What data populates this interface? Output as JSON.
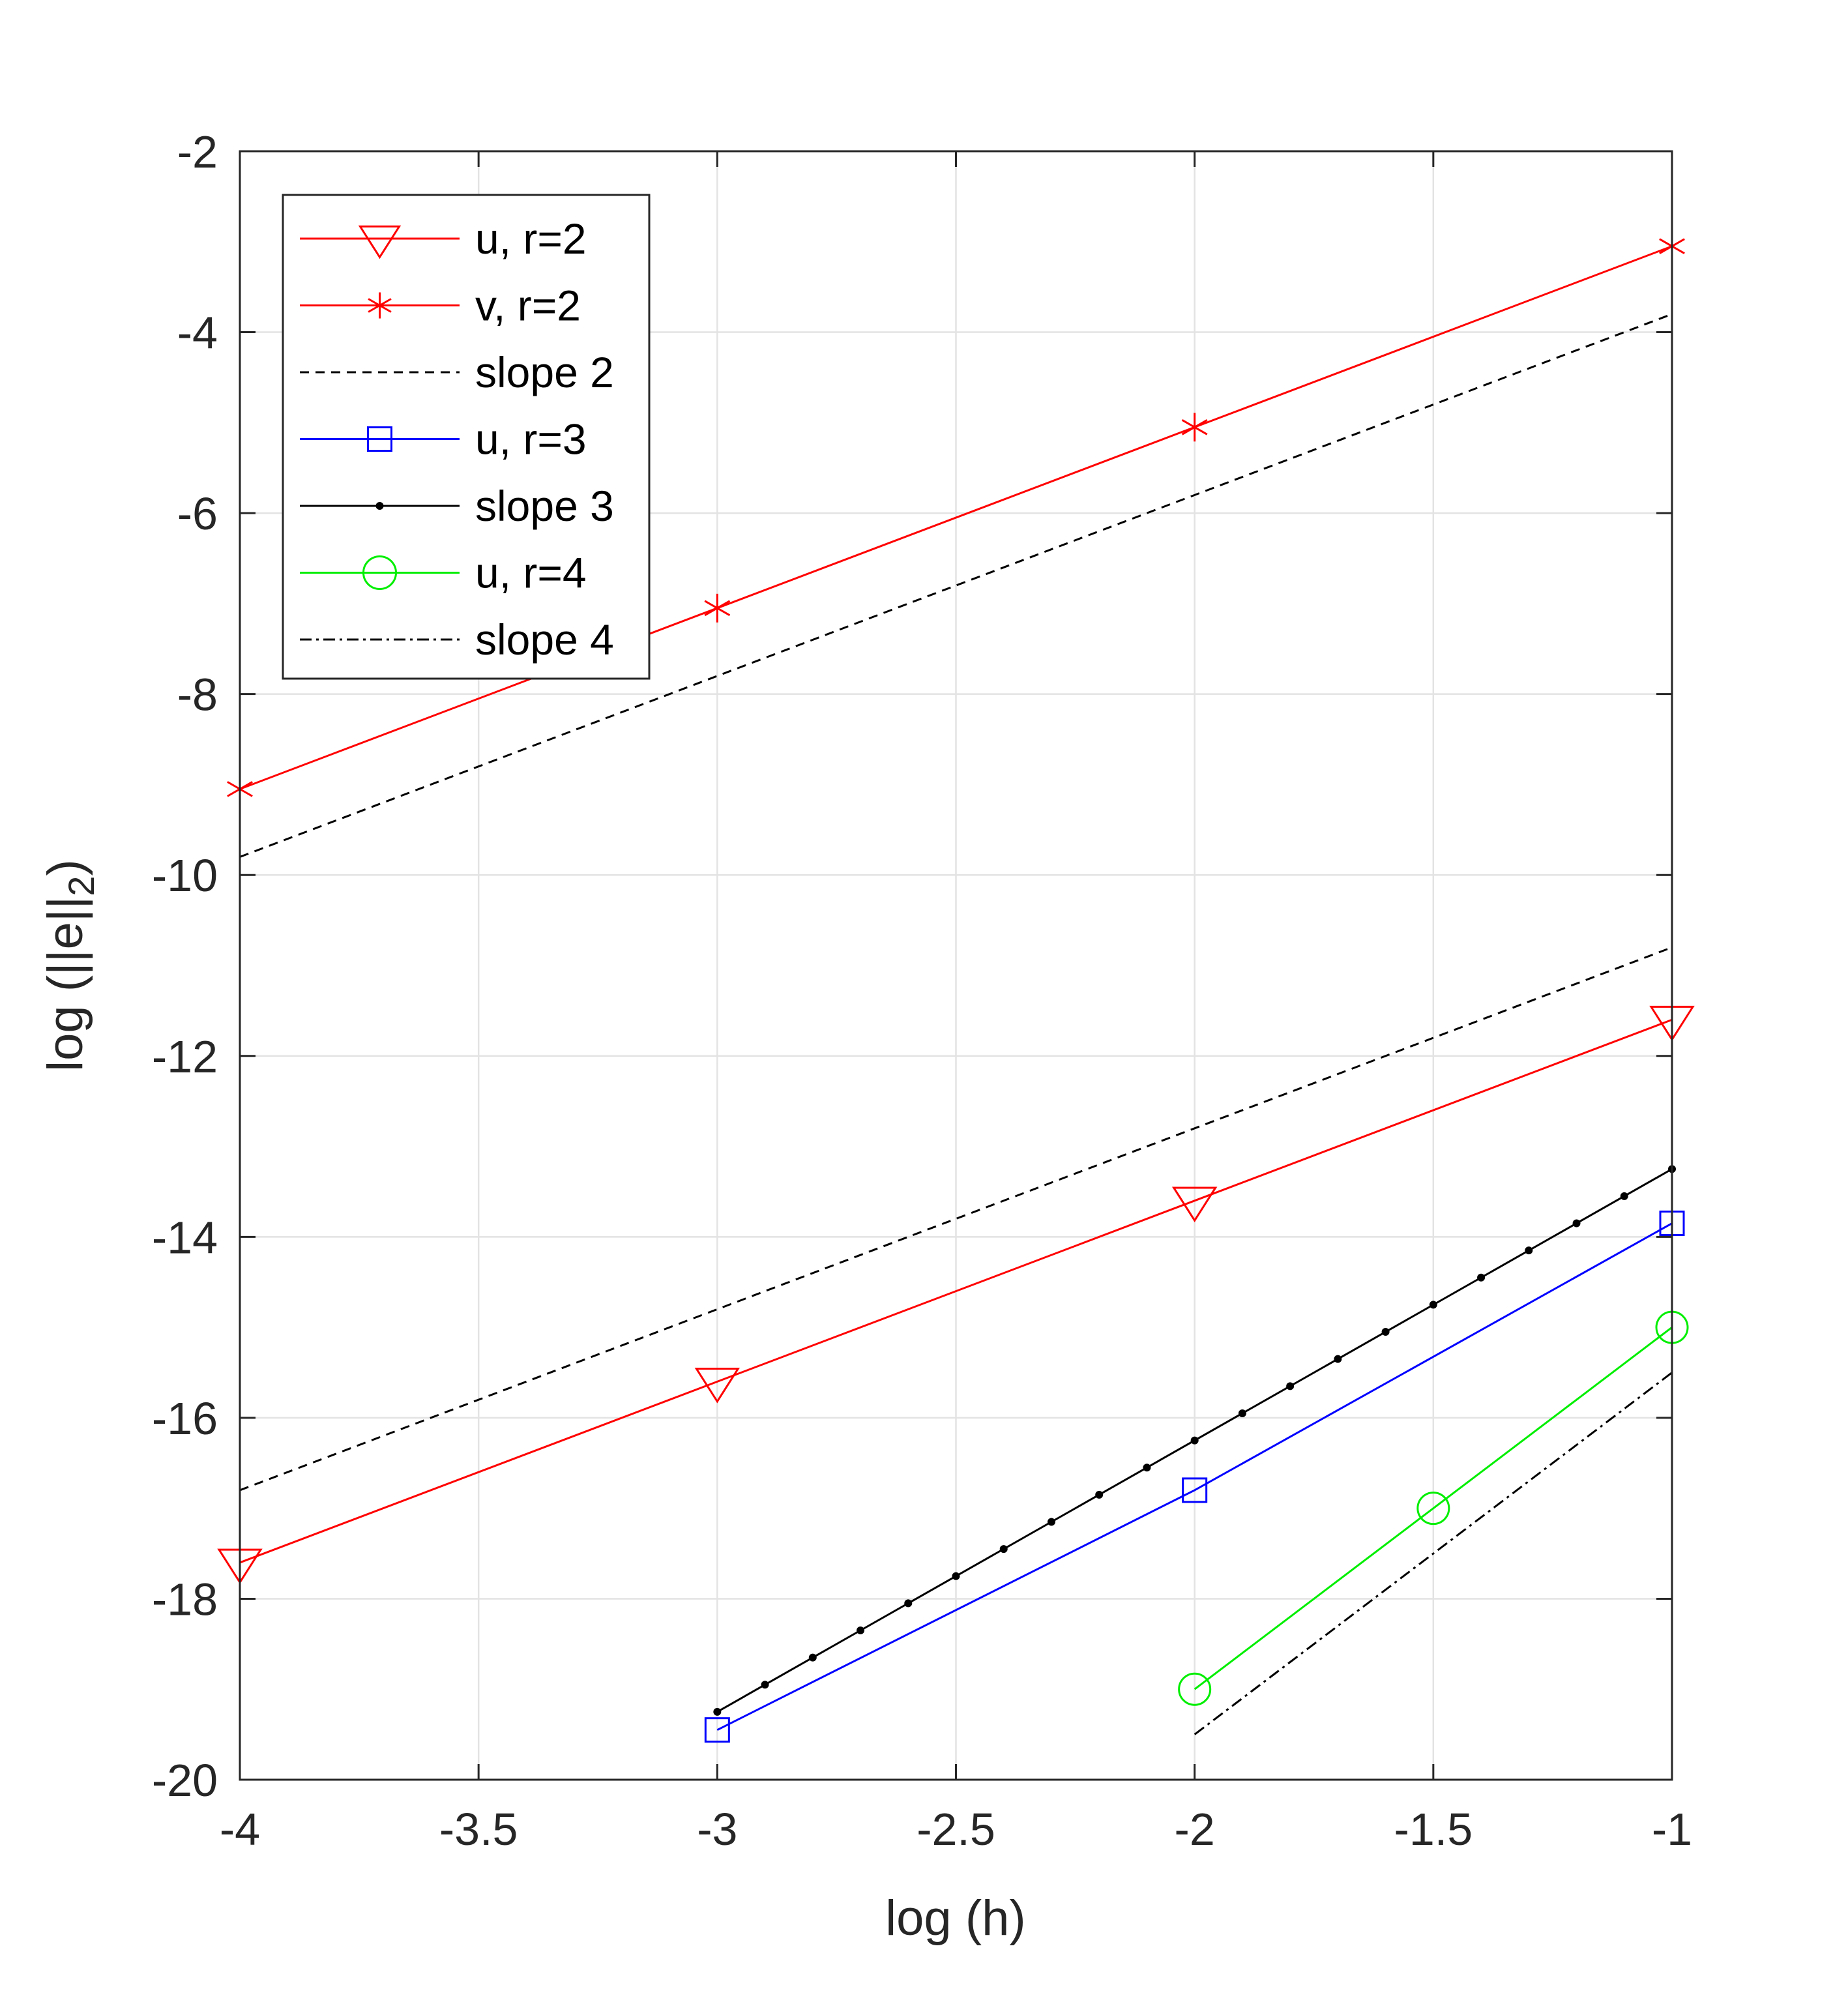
{
  "chart_data": {
    "type": "line",
    "xlabel": "log (h)",
    "ylabel": {
      "prefix": "log (||e||",
      "subscript": "2",
      "suffix": ")"
    },
    "xlim": [
      -4,
      -1
    ],
    "ylim": [
      -20,
      -2
    ],
    "xticks": [
      -4,
      -3.5,
      -3,
      -2.5,
      -2,
      -1.5,
      -1
    ],
    "xtick_labels": [
      "-4",
      "-3.5",
      "-3",
      "-2.5",
      "-2",
      "-1.5",
      "-1"
    ],
    "yticks": [
      -20,
      -18,
      -16,
      -14,
      -12,
      -10,
      -8,
      -6,
      -4,
      -2
    ],
    "ytick_labels": [
      "-20",
      "-18",
      "-16",
      "-14",
      "-12",
      "-10",
      "-8",
      "-6",
      "-4",
      "-2"
    ],
    "grid": true,
    "legend_position": "top-left",
    "series": [
      {
        "name": "u, r=2",
        "color": "#ff0000",
        "style": "solid",
        "marker": "triangle-down",
        "x": [
          -4,
          -3,
          -2,
          -1
        ],
        "y": [
          -17.6,
          -15.6,
          -13.6,
          -11.6
        ]
      },
      {
        "name": "v, r=2",
        "color": "#ff0000",
        "style": "solid",
        "marker": "asterisk",
        "x": [
          -4,
          -3,
          -2,
          -1
        ],
        "y": [
          -9.05,
          -7.05,
          -5.05,
          -3.05
        ]
      },
      {
        "name": "slope 2",
        "color": "#000000",
        "style": "dashed",
        "marker": "none",
        "segments": [
          {
            "x": [
              -4,
              -1
            ],
            "y": [
              -9.8,
              -3.8
            ]
          },
          {
            "x": [
              -4,
              -1
            ],
            "y": [
              -16.8,
              -10.8
            ]
          }
        ]
      },
      {
        "name": "u, r=3",
        "color": "#0000ff",
        "style": "solid",
        "marker": "square",
        "x": [
          -3,
          -2,
          -1
        ],
        "y": [
          -19.45,
          -16.8,
          -13.85
        ]
      },
      {
        "name": "slope 3",
        "color": "#000000",
        "style": "solid",
        "marker": "dot",
        "x": [
          -3,
          -1
        ],
        "y": [
          -19.25,
          -13.25
        ],
        "marker_step": 0.1
      },
      {
        "name": "u, r=4",
        "color": "#00ee00",
        "style": "solid",
        "marker": "circle",
        "x": [
          -2,
          -1.5,
          -1
        ],
        "y": [
          -19.0,
          -17.0,
          -15.0
        ]
      },
      {
        "name": "slope 4",
        "color": "#000000",
        "style": "dashdot",
        "marker": "none",
        "x": [
          -2,
          -1
        ],
        "y": [
          -19.5,
          -15.5
        ]
      }
    ]
  }
}
